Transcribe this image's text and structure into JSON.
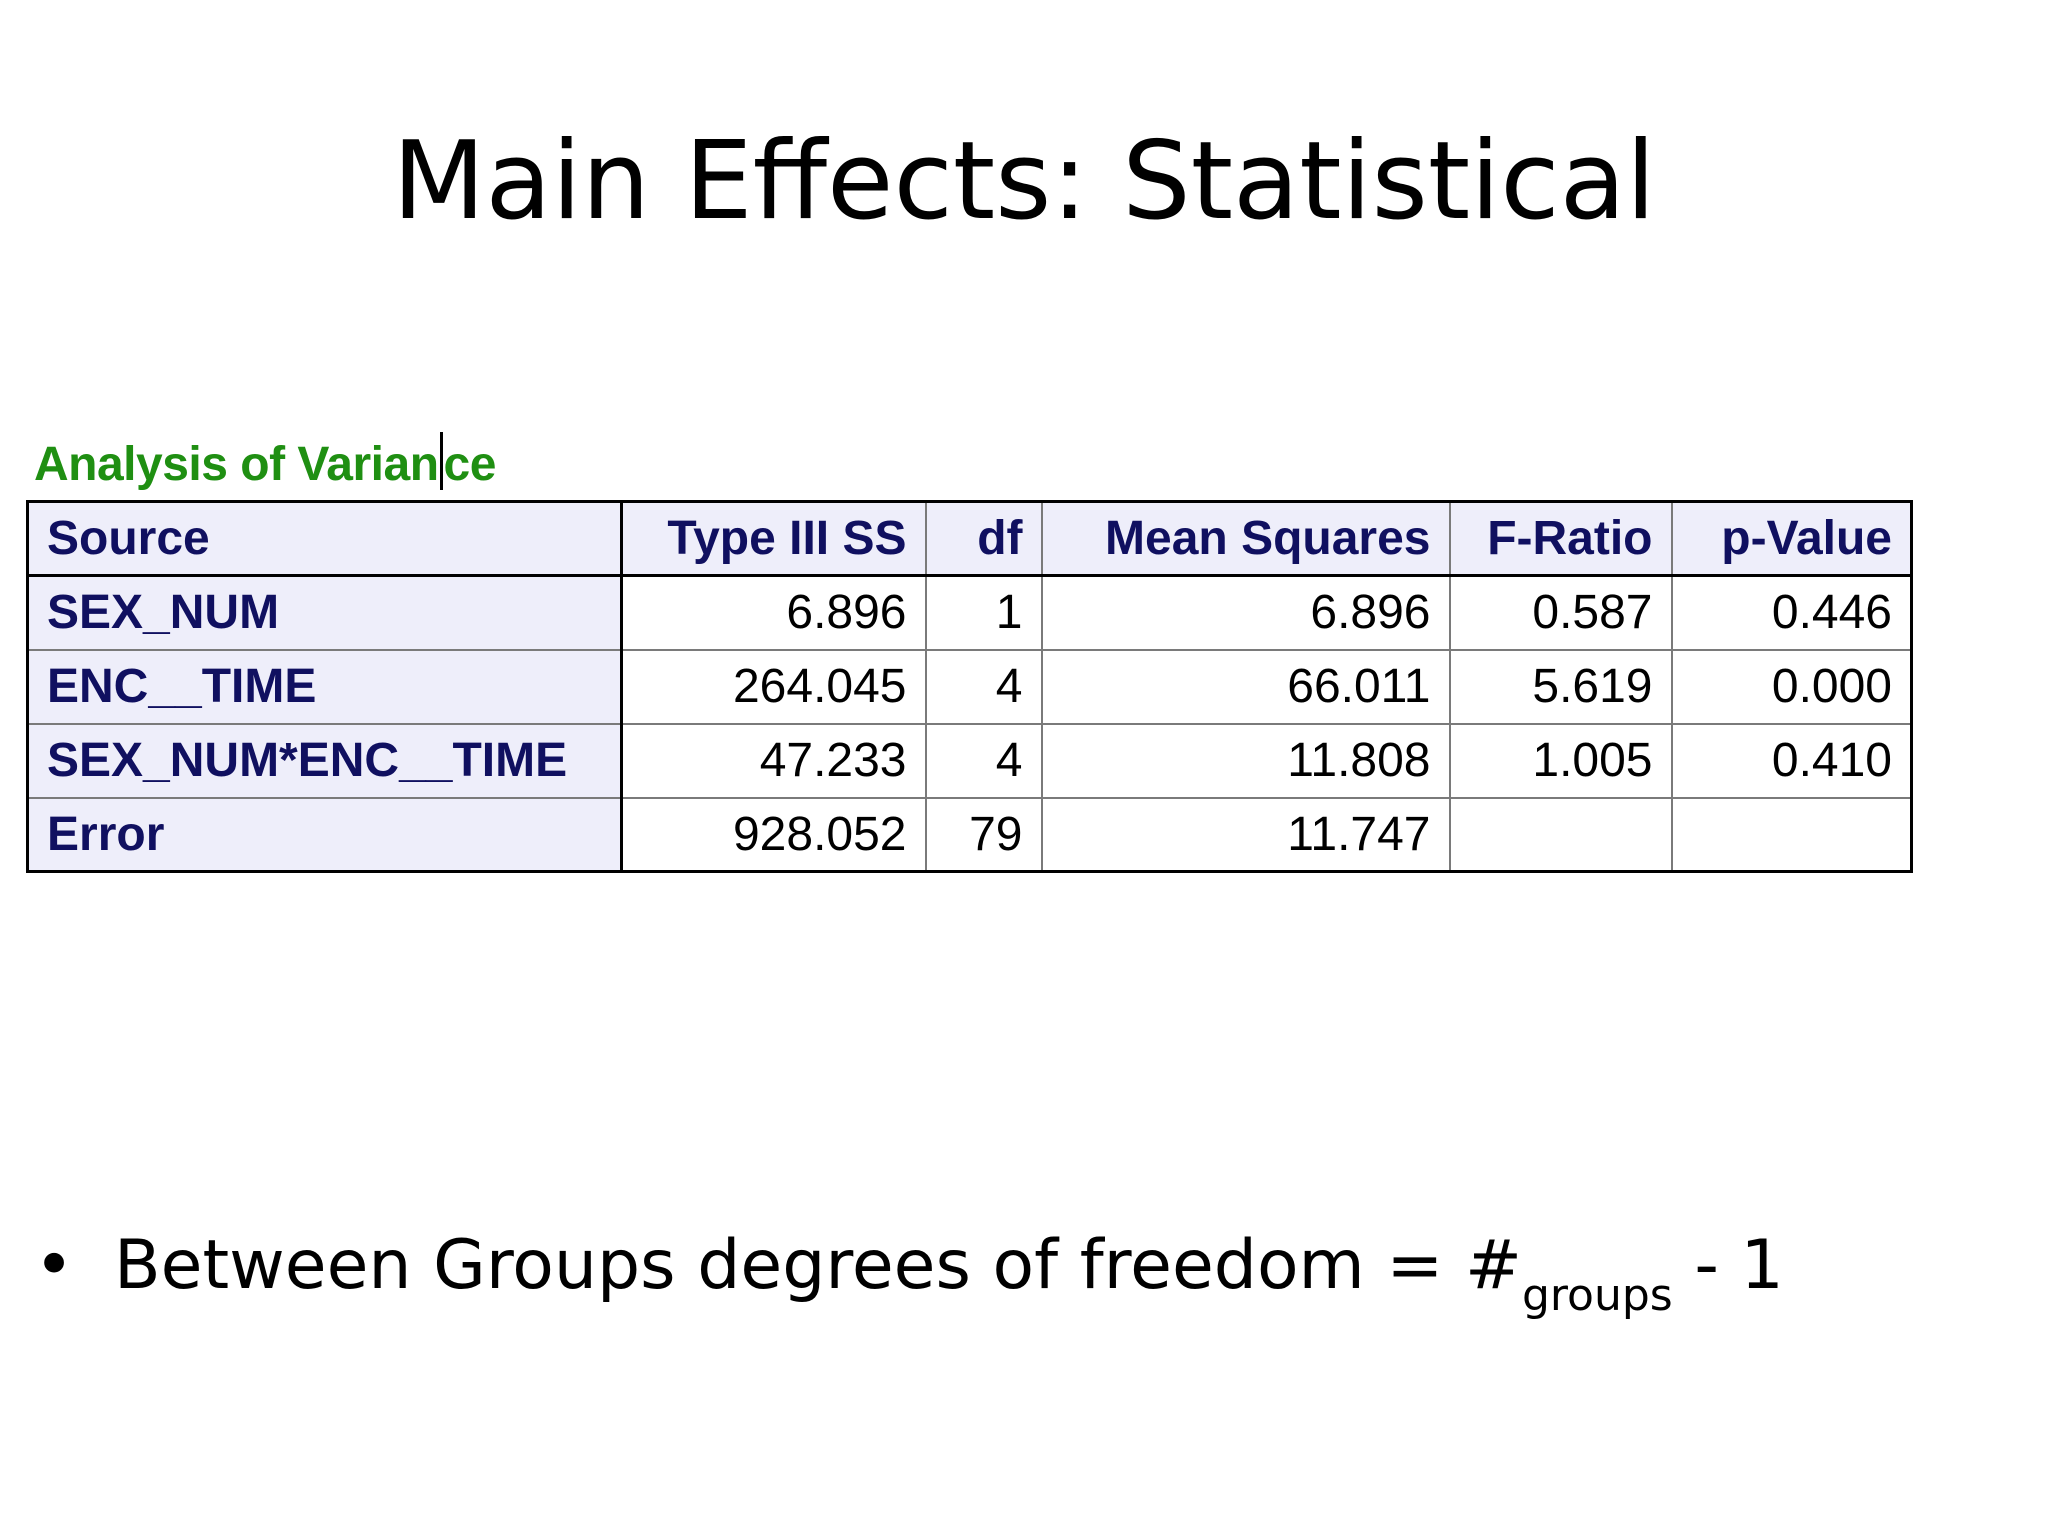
{
  "slide": {
    "title": "Main Effects: Statistical"
  },
  "anova": {
    "caption_part1": "Analysis of Varian",
    "caption_part2": "ce",
    "headers": {
      "source": "Source",
      "ss": "Type III SS",
      "df": "df",
      "ms": "Mean Squares",
      "f": "F-Ratio",
      "p": "p-Value"
    },
    "rows": [
      {
        "source": "SEX_NUM",
        "ss": "6.896",
        "df": "1",
        "ms": "6.896",
        "f": "0.587",
        "p": "0.446"
      },
      {
        "source": "ENC__TIME",
        "ss": "264.045",
        "df": "4",
        "ms": "66.011",
        "f": "5.619",
        "p": "0.000"
      },
      {
        "source": "SEX_NUM*ENC__TIME",
        "ss": "47.233",
        "df": "4",
        "ms": "11.808",
        "f": "1.005",
        "p": "0.410"
      },
      {
        "source": "Error",
        "ss": "928.052",
        "df": "79",
        "ms": "11.747",
        "f": "",
        "p": ""
      }
    ]
  },
  "bullet": {
    "symbol": "•",
    "text": "Between Groups degrees of freedom = #",
    "subscript": "groups",
    "suffix": " - 1"
  }
}
